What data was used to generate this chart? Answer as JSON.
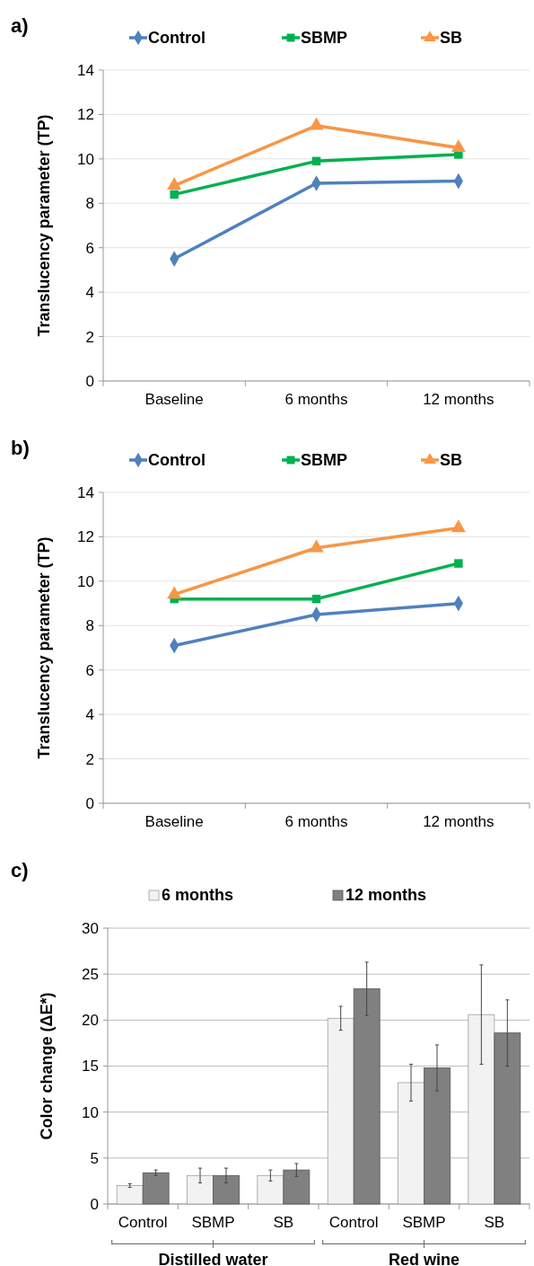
{
  "chart_data": [
    {
      "type": "line",
      "title": "a)",
      "ylabel": "Translucency parameter (TP)",
      "categories": [
        "Baseline",
        "6 months",
        "12 months"
      ],
      "ylim": [
        0,
        14
      ],
      "yticks": [
        0,
        2,
        4,
        6,
        8,
        10,
        12,
        14
      ],
      "grid": "y",
      "legend": "top",
      "series": [
        {
          "name": "Control",
          "color": "#4f81bd",
          "marker": "diamond",
          "values": [
            5.5,
            8.9,
            9.0
          ]
        },
        {
          "name": "SBMP",
          "color": "#00b050",
          "marker": "square",
          "values": [
            8.4,
            9.9,
            10.2
          ]
        },
        {
          "name": "SB",
          "color": "#f79646",
          "marker": "triangle",
          "values": [
            8.8,
            11.5,
            10.5
          ]
        }
      ]
    },
    {
      "type": "line",
      "title": "b)",
      "ylabel": "Translucency parameter (TP)",
      "categories": [
        "Baseline",
        "6 months",
        "12 months"
      ],
      "ylim": [
        0,
        14
      ],
      "yticks": [
        0,
        2,
        4,
        6,
        8,
        10,
        12,
        14
      ],
      "grid": "y",
      "legend": "top",
      "series": [
        {
          "name": "Control",
          "color": "#4f81bd",
          "marker": "diamond",
          "values": [
            7.1,
            8.5,
            9.0
          ]
        },
        {
          "name": "SBMP",
          "color": "#00b050",
          "marker": "square",
          "values": [
            9.2,
            9.2,
            10.8
          ]
        },
        {
          "name": "SB",
          "color": "#f79646",
          "marker": "triangle",
          "values": [
            9.4,
            11.5,
            12.4
          ]
        }
      ]
    },
    {
      "type": "bar",
      "title": "c)",
      "ylabel": "Color change (ΔE*)",
      "categories": [
        "Control",
        "SBMP",
        "SB",
        "Control",
        "SBMP",
        "SB"
      ],
      "ylim": [
        0,
        30
      ],
      "yticks": [
        0,
        5,
        10,
        15,
        20,
        25,
        30
      ],
      "grid": "y",
      "legend": "top",
      "annotations": [
        "Distilled water",
        "Red wine"
      ],
      "series": [
        {
          "name": "6 months",
          "color": "#f2f2f2",
          "values": [
            2.0,
            3.1,
            3.1,
            20.2,
            13.2,
            20.6
          ],
          "errors": [
            [
              1.8,
              2.2
            ],
            [
              2.3,
              3.9
            ],
            [
              2.5,
              3.7
            ],
            [
              18.9,
              21.5
            ],
            [
              11.2,
              15.2
            ],
            [
              15.2,
              26.0
            ]
          ]
        },
        {
          "name": "12 months",
          "color": "#808080",
          "values": [
            3.4,
            3.1,
            3.7,
            23.4,
            14.8,
            18.6
          ],
          "errors": [
            [
              3.1,
              3.7
            ],
            [
              2.3,
              3.9
            ],
            [
              3.0,
              4.4
            ],
            [
              20.5,
              26.3
            ],
            [
              12.3,
              17.3
            ],
            [
              15.0,
              22.2
            ]
          ]
        }
      ]
    }
  ]
}
